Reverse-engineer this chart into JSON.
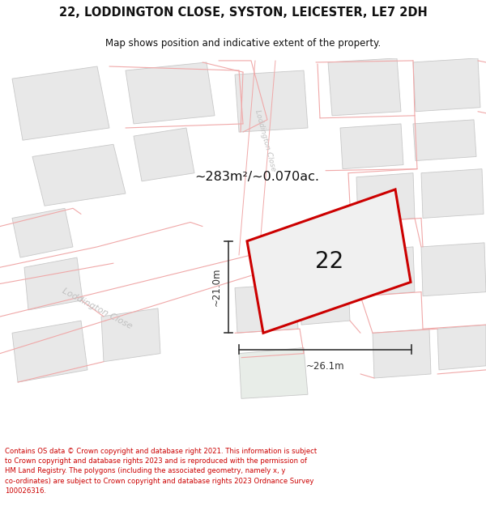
{
  "title": "22, LODDINGTON CLOSE, SYSTON, LEICESTER, LE7 2DH",
  "subtitle": "Map shows position and indicative extent of the property.",
  "area_text": "~283m²/~0.070ac.",
  "label_22": "22",
  "dim_width": "~26.1m",
  "dim_height": "~21.0m",
  "street_label_diag": "Loddington Close",
  "street_label_vert": "Loddington Close",
  "footer": "Contains OS data © Crown copyright and database right 2021. This information is subject to Crown copyright and database rights 2023 and is reproduced with the permission of HM Land Registry. The polygons (including the associated geometry, namely x, y co-ordinates) are subject to Crown copyright and database rights 2023 Ordnance Survey 100026316.",
  "map_bg": "#ffffff",
  "building_fill": "#e8e8e8",
  "building_edge": "#c8c8c8",
  "boundary_color": "#f0a8a8",
  "plot_color": "#cc0000",
  "dim_color": "#333333",
  "text_color": "#111111",
  "street_color": "#c0c0c0",
  "footer_color": "#cc0000",
  "greenish": "#e8ede8"
}
